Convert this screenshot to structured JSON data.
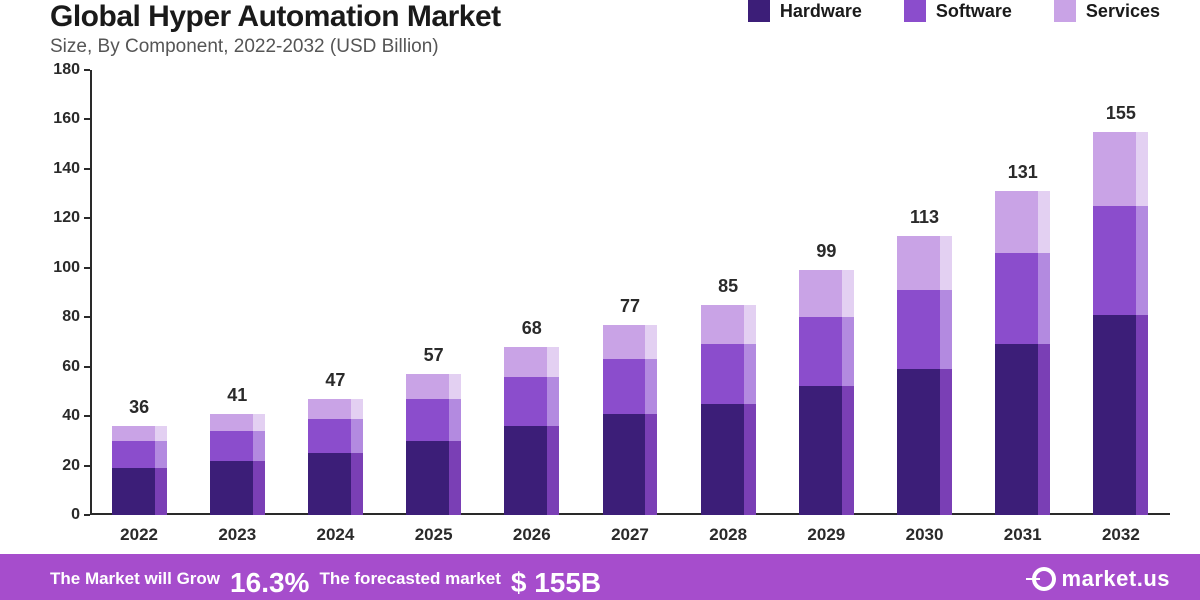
{
  "title": "Global Hyper Automation Market",
  "subtitle": "Size, By Component, 2022-2032 (USD Billion)",
  "title_fontsize": 30,
  "subtitle_fontsize": 19,
  "legend": [
    {
      "label": "Hardware",
      "color": "#3c1e78"
    },
    {
      "label": "Software",
      "color": "#8b4dcc"
    },
    {
      "label": "Services",
      "color": "#c9a3e6"
    }
  ],
  "chart": {
    "type": "stacked-bar",
    "ylim": [
      0,
      180
    ],
    "ytick_step": 20,
    "yticks": [
      0,
      20,
      40,
      60,
      80,
      100,
      120,
      140,
      160,
      180
    ],
    "categories": [
      "2022",
      "2023",
      "2024",
      "2025",
      "2026",
      "2027",
      "2028",
      "2029",
      "2030",
      "2031",
      "2032"
    ],
    "totals": [
      36,
      41,
      47,
      57,
      68,
      77,
      85,
      99,
      113,
      131,
      155
    ],
    "series": [
      {
        "name": "Hardware",
        "color": "#3c1e78",
        "shadow": "#7a3fb5",
        "values": [
          19,
          22,
          25,
          30,
          36,
          41,
          45,
          52,
          59,
          69,
          81
        ]
      },
      {
        "name": "Software",
        "color": "#8b4dcc",
        "shadow": "#b38ae0",
        "values": [
          11,
          12,
          14,
          17,
          20,
          22,
          24,
          28,
          32,
          37,
          44
        ]
      },
      {
        "name": "Services",
        "color": "#c9a3e6",
        "shadow": "#e3d0f2",
        "values": [
          6,
          7,
          8,
          10,
          12,
          14,
          16,
          19,
          22,
          25,
          30
        ]
      }
    ],
    "bar_width_ratio": 0.56,
    "axis_color": "#2a2a2a",
    "label_fontsize": 17,
    "total_label_fontsize": 18
  },
  "footer": {
    "bg_color": "#a64dcc",
    "line_color": "#a64dcc",
    "text1": "The Market will Grow",
    "cagr": "16.3%",
    "text2": "The forecasted market",
    "value": "$ 155B",
    "brand": "market.us"
  }
}
